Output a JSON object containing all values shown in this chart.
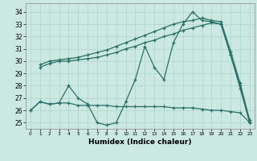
{
  "xlabel": "Humidex (Indice chaleur)",
  "bg_color": "#cce8e2",
  "grid_color": "#aad4cc",
  "line_color": "#2a7068",
  "ylim": [
    24.5,
    34.7
  ],
  "xlim": [
    -0.5,
    23.5
  ],
  "yticks": [
    25,
    26,
    27,
    28,
    29,
    30,
    31,
    32,
    33,
    34
  ],
  "xticks": [
    0,
    1,
    2,
    3,
    4,
    5,
    6,
    7,
    8,
    9,
    10,
    11,
    12,
    13,
    14,
    15,
    16,
    17,
    18,
    19,
    20,
    21,
    22,
    23
  ],
  "series": [
    {
      "x": [
        1,
        2,
        3,
        4,
        5,
        6,
        7,
        8,
        9,
        10,
        11,
        12,
        13,
        14,
        15,
        16,
        17,
        18,
        19,
        20,
        21,
        22,
        23
      ],
      "y": [
        29.5,
        29.8,
        30.0,
        30.0,
        30.1,
        30.2,
        30.3,
        30.5,
        30.7,
        31.0,
        31.2,
        31.5,
        31.7,
        32.0,
        32.2,
        32.5,
        32.7,
        32.9,
        33.1,
        33.0,
        30.5,
        27.8,
        25.0
      ]
    },
    {
      "x": [
        1,
        2,
        3,
        4,
        5,
        6,
        7,
        8,
        9,
        10,
        11,
        12,
        13,
        14,
        15,
        16,
        17,
        18,
        19,
        20,
        21,
        22,
        23
      ],
      "y": [
        29.7,
        30.0,
        30.1,
        30.2,
        30.3,
        30.5,
        30.7,
        30.9,
        31.2,
        31.5,
        31.8,
        32.1,
        32.4,
        32.7,
        33.0,
        33.2,
        33.3,
        33.5,
        33.3,
        33.2,
        30.8,
        28.2,
        25.2
      ]
    },
    {
      "x": [
        0,
        1,
        2,
        3,
        4,
        5,
        6,
        7,
        8,
        9,
        10,
        11,
        12,
        13,
        14,
        15,
        16,
        17,
        18,
        19,
        20,
        21,
        22,
        23
      ],
      "y": [
        26.0,
        26.7,
        26.5,
        26.6,
        26.6,
        26.4,
        26.4,
        26.4,
        26.4,
        26.3,
        26.3,
        26.3,
        26.3,
        26.3,
        26.3,
        26.2,
        26.2,
        26.2,
        26.1,
        26.0,
        26.0,
        25.9,
        25.8,
        25.0
      ]
    },
    {
      "x": [
        0,
        1,
        2,
        3,
        4,
        5,
        6,
        7,
        8,
        9,
        10,
        11,
        12,
        13,
        14,
        15,
        16,
        17,
        18,
        19,
        20,
        21,
        22,
        23
      ],
      "y": [
        26.0,
        26.7,
        26.5,
        26.6,
        28.0,
        27.0,
        26.5,
        25.0,
        24.8,
        25.0,
        26.7,
        28.5,
        31.2,
        29.5,
        28.5,
        31.5,
        33.0,
        34.0,
        33.3,
        33.2,
        33.0,
        30.5,
        28.0,
        25.0
      ]
    }
  ]
}
